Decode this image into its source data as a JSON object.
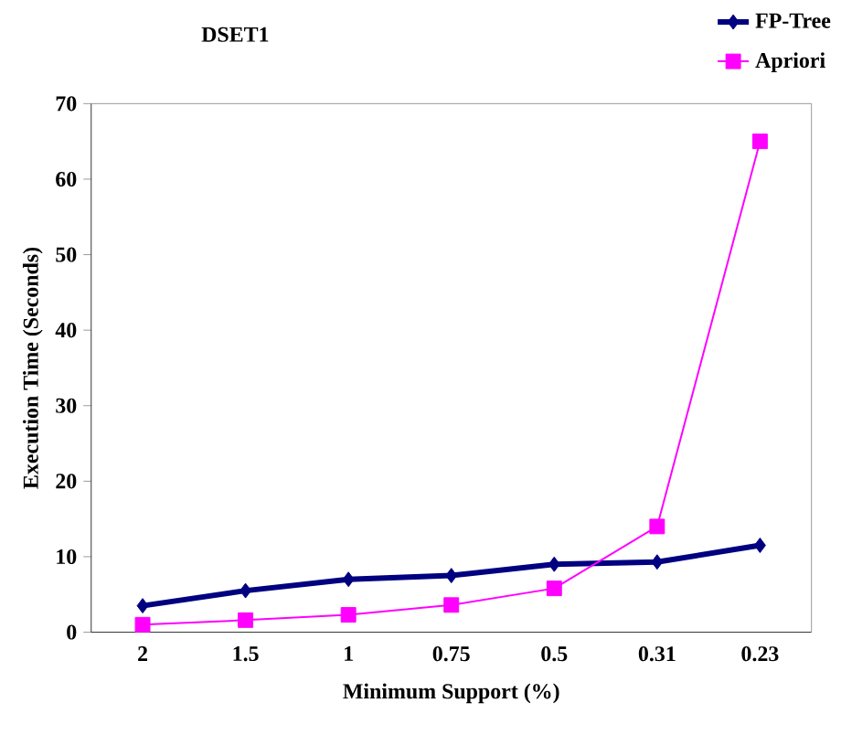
{
  "chart_data": {
    "type": "line",
    "title": "DSET1",
    "xlabel": "Minimum Support (%)",
    "ylabel": "Execution Time (Seconds)",
    "categories": [
      "2",
      "1.5",
      "1",
      "0.75",
      "0.5",
      "0.31",
      "0.23"
    ],
    "series": [
      {
        "name": "FP-Tree",
        "color": "#000080",
        "marker": "diamond",
        "values": [
          3.5,
          5.5,
          7,
          7.5,
          9,
          9.3,
          11.5
        ]
      },
      {
        "name": "Apriori",
        "color": "#ff00ff",
        "marker": "square",
        "values": [
          1,
          1.6,
          2.3,
          3.6,
          5.8,
          14,
          65
        ]
      }
    ],
    "ylim": [
      0,
      70
    ],
    "yticks": [
      0,
      10,
      20,
      30,
      40,
      50,
      60,
      70
    ],
    "legend": "top right",
    "grid": false,
    "line_style": "solid"
  }
}
